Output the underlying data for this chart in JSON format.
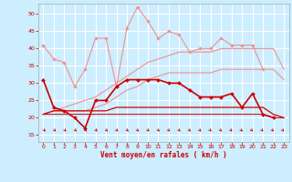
{
  "x": [
    0,
    1,
    2,
    3,
    4,
    5,
    6,
    7,
    8,
    9,
    10,
    11,
    12,
    13,
    14,
    15,
    16,
    17,
    18,
    19,
    20,
    21,
    22,
    23
  ],
  "bg_color": "#cceeff",
  "grid_color": "#ffffff",
  "tick_color": "#cc0000",
  "label_color": "#cc0000",
  "xlabel": "Vent moyen/en rafales ( km/h )",
  "xlim": [
    -0.5,
    23.5
  ],
  "ylim": [
    13,
    53
  ],
  "yticks": [
    15,
    20,
    25,
    30,
    35,
    40,
    45,
    50
  ],
  "xticks": [
    0,
    1,
    2,
    3,
    4,
    5,
    6,
    7,
    8,
    9,
    10,
    11,
    12,
    13,
    14,
    15,
    16,
    17,
    18,
    19,
    20,
    21,
    22,
    23
  ],
  "series": [
    {
      "color": "#f09090",
      "lw": 0.8,
      "marker": "D",
      "ms": 1.8,
      "y": [
        41,
        37,
        36,
        29,
        34,
        43,
        43,
        29,
        46,
        52,
        48,
        43,
        45,
        44,
        39,
        40,
        40,
        43,
        41,
        41,
        41,
        34,
        null,
        null
      ]
    },
    {
      "color": "#f09090",
      "lw": 0.8,
      "marker": null,
      "ms": 0,
      "y": [
        21,
        22,
        23,
        24,
        25,
        26,
        28,
        30,
        32,
        34,
        36,
        37,
        38,
        39,
        39,
        39,
        39,
        40,
        40,
        40,
        40,
        40,
        40,
        34
      ]
    },
    {
      "color": "#f09090",
      "lw": 0.8,
      "marker": null,
      "ms": 0,
      "y": [
        21,
        22,
        22,
        22,
        22,
        23,
        24,
        26,
        28,
        29,
        31,
        32,
        33,
        33,
        33,
        33,
        33,
        34,
        34,
        34,
        34,
        34,
        34,
        31
      ]
    },
    {
      "color": "#cc0000",
      "lw": 1.2,
      "marker": "D",
      "ms": 2.0,
      "y": [
        31,
        23,
        22,
        20,
        17,
        25,
        25,
        29,
        31,
        31,
        31,
        31,
        30,
        30,
        28,
        26,
        26,
        26,
        27,
        23,
        27,
        21,
        20,
        null
      ]
    },
    {
      "color": "#cc0000",
      "lw": 0.9,
      "marker": null,
      "ms": 0,
      "y": [
        21,
        22,
        22,
        22,
        22,
        22,
        22,
        23,
        23,
        23,
        23,
        23,
        23,
        23,
        23,
        23,
        23,
        23,
        23,
        23,
        23,
        23,
        21,
        20
      ]
    },
    {
      "color": "#cc0000",
      "lw": 0.7,
      "marker": null,
      "ms": 0,
      "y": [
        21,
        21,
        21,
        21,
        21,
        21,
        21,
        21,
        21,
        21,
        21,
        21,
        21,
        21,
        21,
        21,
        21,
        21,
        21,
        21,
        21,
        21,
        20,
        20
      ]
    }
  ]
}
